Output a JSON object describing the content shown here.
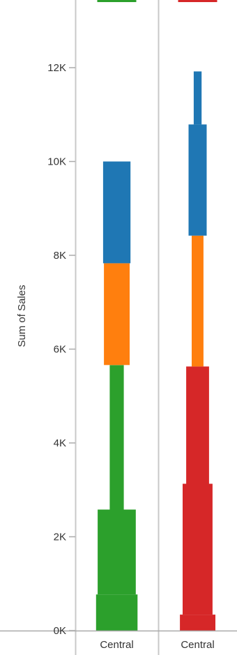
{
  "chart_data": {
    "type": "bar",
    "stacked": true,
    "variable_width": true,
    "title": "",
    "ylabel": "Sum of Sales",
    "ylim": [
      0,
      13500
    ],
    "yticks": [
      {
        "value": 0,
        "label": "0K"
      },
      {
        "value": 2000,
        "label": "2K"
      },
      {
        "value": 4000,
        "label": "4K"
      },
      {
        "value": 6000,
        "label": "6K"
      },
      {
        "value": 8000,
        "label": "8K"
      },
      {
        "value": 10000,
        "label": "10K"
      },
      {
        "value": 12000,
        "label": "12K"
      }
    ],
    "grid": false,
    "colors": {
      "green": "#2ca02c",
      "orange": "#ff7f0e",
      "blue": "#1f77b4",
      "red": "#d62728",
      "divider": "#c8c8c8",
      "axis": "#aaaaaa"
    },
    "columns": [
      {
        "label": "Central",
        "segments": [
          {
            "color": "green",
            "y0": 0,
            "y1": 770,
            "width": 0.5
          },
          {
            "color": "green",
            "y0": 770,
            "y1": 2580,
            "width": 0.46
          },
          {
            "color": "green",
            "y0": 2580,
            "y1": 5660,
            "width": 0.17
          },
          {
            "color": "orange",
            "y0": 5660,
            "y1": 7830,
            "width": 0.31
          },
          {
            "color": "blue",
            "y0": 7830,
            "y1": 10000,
            "width": 0.33
          }
        ]
      },
      {
        "label": "Central",
        "segments": [
          {
            "color": "red",
            "y0": 0,
            "y1": 340,
            "width": 0.45
          },
          {
            "color": "red",
            "y0": 340,
            "y1": 3130,
            "width": 0.38
          },
          {
            "color": "red",
            "y0": 3130,
            "y1": 5630,
            "width": 0.29
          },
          {
            "color": "orange",
            "y0": 5630,
            "y1": 8420,
            "width": 0.15
          },
          {
            "color": "blue",
            "y0": 8420,
            "y1": 10790,
            "width": 0.23
          },
          {
            "color": "blue",
            "y0": 10790,
            "y1": 11920,
            "width": 0.1
          }
        ]
      }
    ],
    "partial_top_marks": [
      {
        "column": 0,
        "color": "green"
      },
      {
        "column": 1,
        "color": "red"
      }
    ]
  }
}
